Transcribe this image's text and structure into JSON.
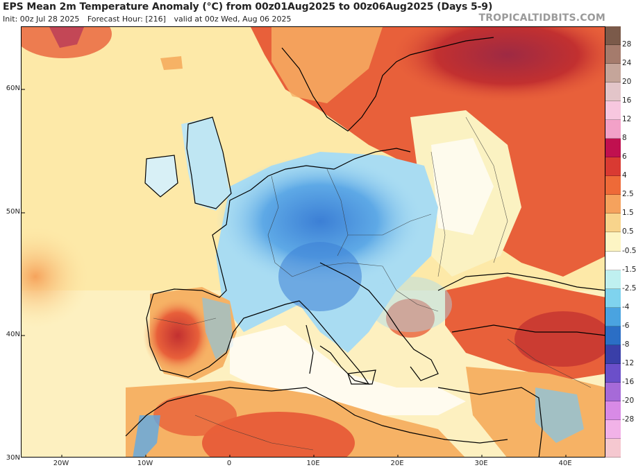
{
  "header": {
    "title": "EPS Mean 2m Temperature Anomaly (°C) from 00z01Aug2025 to 00z06Aug2025 (Days 5-9)",
    "init": "Init: 00z Jul 28 2025",
    "forecast_hour": "Forecast Hour: [216]",
    "valid": "valid at 00z Wed, Aug 06 2025",
    "brand": "TROPICALTIDBITS.COM"
  },
  "axes": {
    "lat_labels": [
      "60N",
      "50N",
      "40N",
      "30N"
    ],
    "lon_labels": [
      "20W",
      "10W",
      "0",
      "10E",
      "20E",
      "30E",
      "40E"
    ]
  },
  "colorbar": {
    "labels": [
      "28",
      "24",
      "20",
      "16",
      "12",
      "8",
      "6",
      "4",
      "2.5",
      "1.5",
      "0.5",
      "-0.5",
      "-1.5",
      "-2.5",
      "-4",
      "-6",
      "-8",
      "-12",
      "-16",
      "-20",
      "-28"
    ],
    "colors": [
      "#7b5a4a",
      "#a57b6c",
      "#c5a59a",
      "#e3c5c9",
      "#f7c7df",
      "#f2a1c8",
      "#c0104f",
      "#d93a32",
      "#ee6a38",
      "#f5a25d",
      "#f8d48c",
      "#fdf5c4",
      "#ffffff",
      "#bff0f0",
      "#7fd3ee",
      "#4aa3e0",
      "#2b6ec5",
      "#3a3fa8",
      "#6b4fc9",
      "#a66ad8",
      "#d88ae6",
      "#f2b2e8",
      "#f5c8d0"
    ]
  },
  "map": {
    "colors": {
      "ocean_warm": "#fde9a8",
      "mild": "#fbf2c2",
      "warm": "#f6b265",
      "hot": "#e8603a",
      "very_hot": "#c23030",
      "extreme": "#9e2a43",
      "cool": "#a9dcf2",
      "cold": "#5ea9e6",
      "colder": "#3c7fd5",
      "neutral": "#ffffff"
    }
  }
}
